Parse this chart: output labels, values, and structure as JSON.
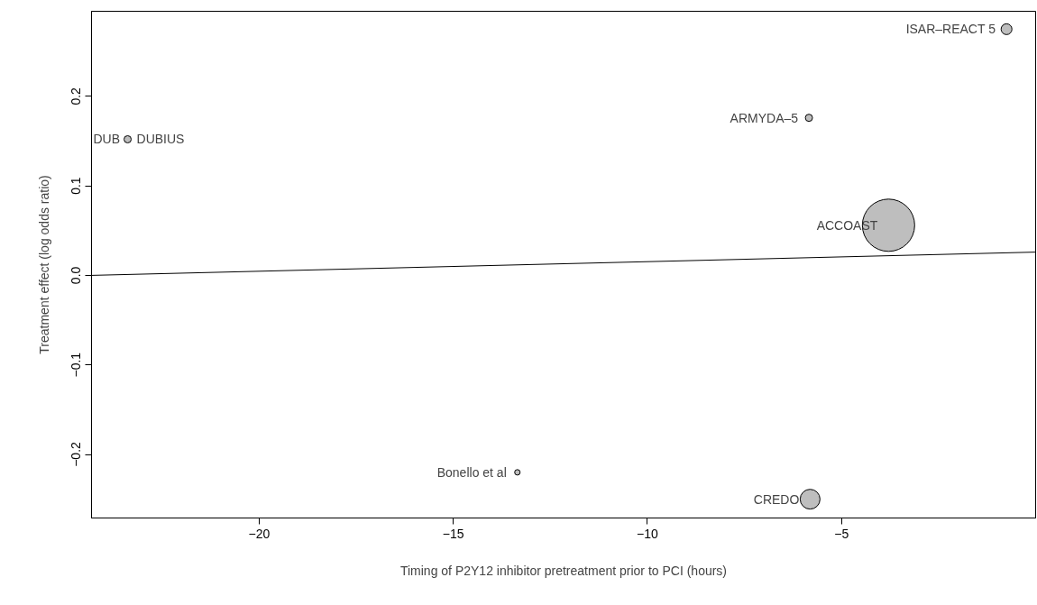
{
  "chart_data": {
    "type": "bubble",
    "xlabel": "Timing of P2Y12 inhibitor pretreatment prior to PCI (hours)",
    "ylabel": "Treatment effect (log odds ratio)",
    "xlim": [
      -24.32,
      0.0
    ],
    "ylim": [
      -0.271,
      0.295
    ],
    "xticks": [
      -20,
      -15,
      -10,
      -5
    ],
    "yticks": [
      -0.2,
      -0.1,
      {
        "value": 0.0,
        "label": "0.0"
      },
      0.1,
      0.2
    ],
    "series": [
      {
        "color": "#bebebe",
        "x": [
          -0.75,
          -5.84,
          -23.39,
          -3.79,
          -13.35,
          -5.81
        ],
        "values": [
          0.275,
          0.176,
          0.152,
          0.056,
          -0.22,
          -0.25
        ],
        "sizes": [
          0.043,
          0.019,
          0.019,
          1,
          0.011,
          0.144
        ]
      },
      {
        "type": "line",
        "color": "#000000",
        "x": [
          -24.32,
          0.0
        ],
        "values": [
          0.0,
          0.026
        ]
      }
    ],
    "annotations": [
      {
        "text": "ISAR–REACT 5",
        "x": -0.75,
        "y": 0.275
      },
      {
        "text": "ARMYDA–5",
        "x": -5.84,
        "y": 0.176
      },
      {
        "text": "DUBIUS",
        "x": -23.39,
        "y": 0.152
      },
      "DUB",
      {
        "text": "ACCOAST",
        "x": -3.79,
        "y": 0.056
      },
      {
        "text": "Bonello et al",
        "x": -13.35,
        "y": -0.22
      },
      {
        "text": "CREDO",
        "x": -5.81,
        "y": -0.25
      }
    ]
  }
}
